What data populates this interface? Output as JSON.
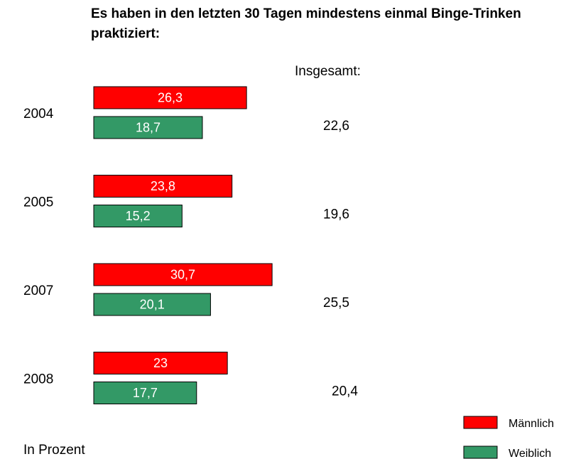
{
  "chart_data": {
    "type": "hbar",
    "title": "Es haben in den letzten 30 Tagen mindestens einmal Binge-Trinken praktiziert:",
    "categories": [
      "2004",
      "2005",
      "2007",
      "2008"
    ],
    "series": [
      {
        "name": "Männlich",
        "color": "#ff0000",
        "values": [
          26.3,
          23.8,
          30.7,
          23
        ],
        "value_labels": [
          "26,3",
          "23,8",
          "30,7",
          "23"
        ]
      },
      {
        "name": "Weiblich",
        "color": "#339966",
        "values": [
          18.7,
          15.2,
          20.1,
          17.7
        ],
        "value_labels": [
          "18,7",
          "15,2",
          "20,1",
          "17,7"
        ]
      }
    ],
    "totals": {
      "label": "Insgesamt:",
      "values": [
        22.6,
        19.6,
        25.5,
        20.4
      ],
      "value_labels": [
        "22,6",
        "19,6",
        "25,5",
        "20,4"
      ]
    },
    "note": "In Prozent"
  }
}
